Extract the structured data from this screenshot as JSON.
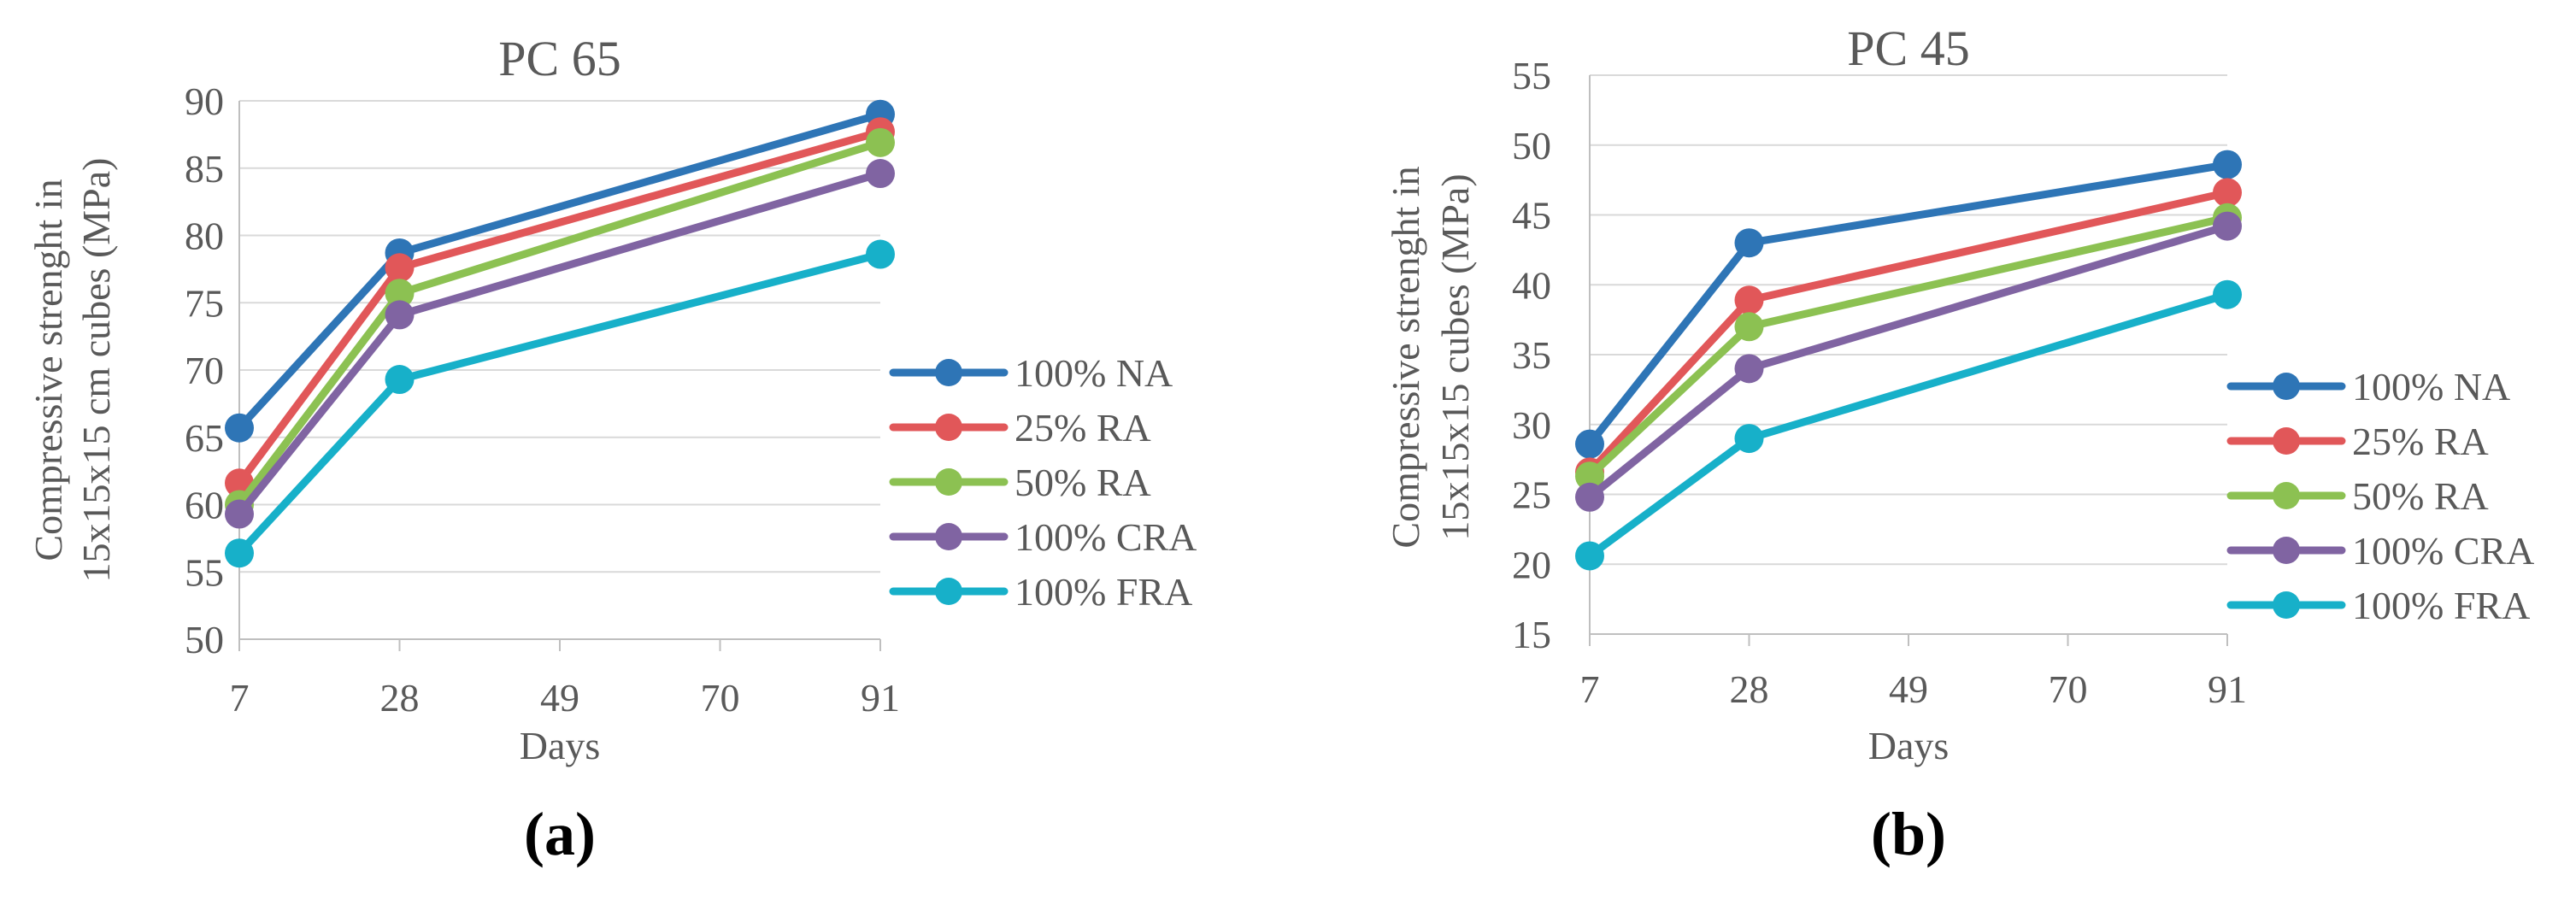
{
  "chart_data": [
    {
      "type": "line",
      "panel_label": "(a)",
      "title": "PC 65",
      "xlabel": "Days",
      "ylabel": [
        "Compressive strenght in",
        "15x15x15 cm cubes (MPa)"
      ],
      "x_ticks": [
        7,
        28,
        49,
        70,
        91
      ],
      "xlim": [
        7,
        91
      ],
      "ylim": [
        50,
        90
      ],
      "y_ticks": [
        50,
        55,
        60,
        65,
        70,
        75,
        80,
        85,
        90
      ],
      "grid": true,
      "legend_position": "right",
      "x": [
        7,
        28,
        91
      ],
      "series": [
        {
          "name": "100% NA",
          "color": "#2E75B6",
          "values": [
            65.7,
            78.7,
            89.0
          ]
        },
        {
          "name": "25% RA",
          "color": "#E15759",
          "values": [
            61.6,
            77.6,
            87.7
          ]
        },
        {
          "name": "50% RA",
          "color": "#8CC152",
          "values": [
            60.0,
            75.7,
            86.9
          ]
        },
        {
          "name": "100% CRA",
          "color": "#8064A2",
          "values": [
            59.3,
            74.1,
            84.6
          ]
        },
        {
          "name": "100% FRA",
          "color": "#17B0C9",
          "values": [
            56.4,
            69.3,
            78.6
          ]
        }
      ]
    },
    {
      "type": "line",
      "panel_label": "(b)",
      "title": "PC 45",
      "xlabel": "Days",
      "ylabel": [
        "Compressive strenght in",
        "15x15x15 cubes (MPa)"
      ],
      "x_ticks": [
        7,
        28,
        49,
        70,
        91
      ],
      "xlim": [
        7,
        91
      ],
      "ylim": [
        15,
        55
      ],
      "y_ticks": [
        15,
        20,
        25,
        30,
        35,
        40,
        45,
        50,
        55
      ],
      "grid": true,
      "legend_position": "right",
      "x": [
        7,
        28,
        91
      ],
      "series": [
        {
          "name": "100% NA",
          "color": "#2E75B6",
          "values": [
            28.6,
            43.0,
            48.6
          ]
        },
        {
          "name": "25% RA",
          "color": "#E15759",
          "values": [
            26.6,
            38.9,
            46.6
          ]
        },
        {
          "name": "50% RA",
          "color": "#8CC152",
          "values": [
            26.3,
            37.0,
            44.8
          ]
        },
        {
          "name": "100% CRA",
          "color": "#8064A2",
          "values": [
            24.8,
            34.0,
            44.2
          ]
        },
        {
          "name": "100% FRA",
          "color": "#17B0C9",
          "values": [
            20.6,
            29.0,
            39.3
          ]
        }
      ]
    }
  ]
}
